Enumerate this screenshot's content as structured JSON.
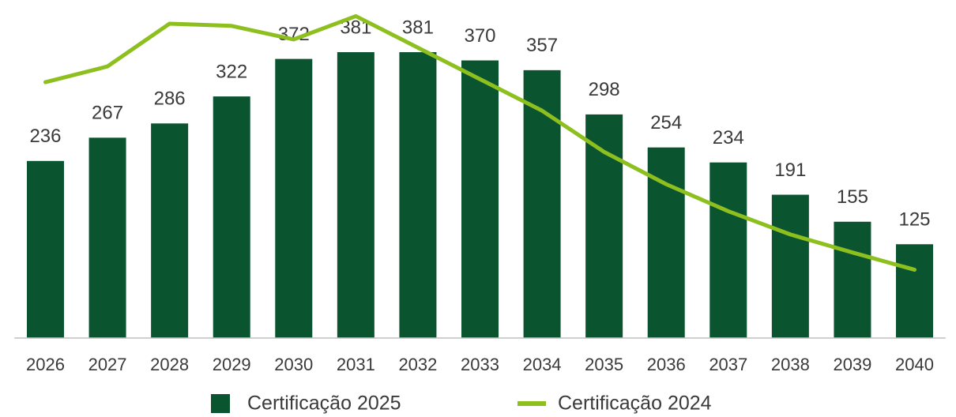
{
  "chart_data": {
    "type": "bar",
    "categories": [
      "2026",
      "2027",
      "2028",
      "2029",
      "2030",
      "2031",
      "2032",
      "2033",
      "2034",
      "2035",
      "2036",
      "2037",
      "2038",
      "2039",
      "2040"
    ],
    "series": [
      {
        "name": "Certificação 2025",
        "type": "bar",
        "color": "#0b5430",
        "values": [
          236,
          267,
          286,
          322,
          372,
          381,
          381,
          370,
          357,
          298,
          254,
          234,
          191,
          155,
          125
        ]
      },
      {
        "name": "Certificação 2024",
        "type": "line",
        "color": "#8dbf1f",
        "values": [
          341,
          362,
          419,
          416,
          398,
          429,
          387,
          345,
          303,
          248,
          205,
          169,
          138,
          114,
          91
        ]
      }
    ],
    "ylim": [
      0,
      450
    ],
    "legend": "bottom"
  }
}
